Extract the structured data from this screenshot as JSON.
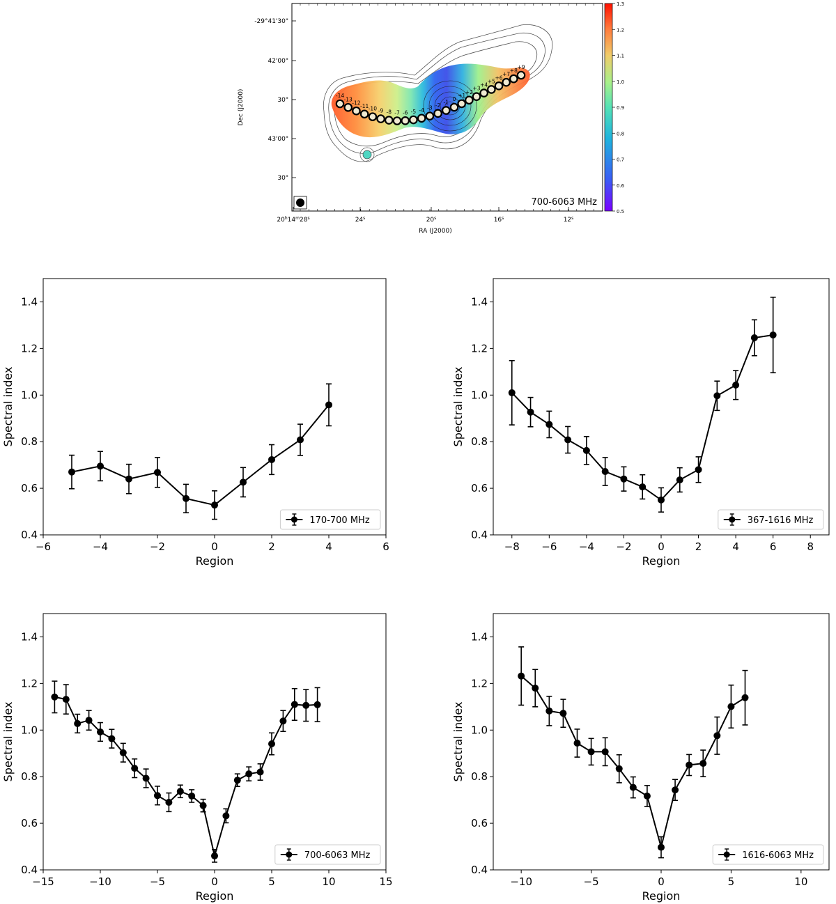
{
  "map_panel": {
    "band_label": "700-6063 MHz",
    "ylabel": "Dec (J2000)",
    "xlabel": "RA (J2000)",
    "dec_ticks": [
      "-29°41'30\"",
      "42'00\"",
      "30\"",
      "43'00\"",
      "30\""
    ],
    "ra_ticks": [
      {
        "main": "20",
        "sup1": "h",
        "mid": "14",
        "sup2": "m",
        "end": "28",
        "sup3": "s"
      },
      {
        "main": "24",
        "sup3": "s"
      },
      {
        "main": "20",
        "sup3": "s"
      },
      {
        "main": "16",
        "sup3": "s"
      },
      {
        "main": "12",
        "sup3": "s"
      }
    ],
    "colorbar": {
      "min": 0.5,
      "max": 1.3,
      "ticks": [
        "1.3",
        "1.2",
        "1.1",
        "1.0",
        "0.9",
        "0.8",
        "0.7",
        "0.6",
        "0.5"
      ]
    },
    "region_labels": [
      "-14",
      "-13",
      "-12",
      "-11",
      "-10",
      "-9",
      "-8",
      "-7",
      "-6",
      "-5",
      "-4",
      "-3",
      "-2",
      "-1",
      "0",
      "+1",
      "+2",
      "+3",
      "+4",
      "+5",
      "+6",
      "+7",
      "+8",
      "+9"
    ],
    "colors": {
      "ridge": "#f0ead2",
      "marker_edge": "#000000"
    }
  },
  "chart_data": [
    {
      "type": "line",
      "legend": "170-700 MHz",
      "legend_position": "bottom-right",
      "xlabel": "Region",
      "ylabel": "Spectral index",
      "xlim": [
        -6,
        6
      ],
      "ylim": [
        0.4,
        1.5
      ],
      "xticks": [
        -6,
        -4,
        -2,
        0,
        2,
        4,
        6
      ],
      "yticks": [
        0.4,
        0.6,
        0.8,
        1.0,
        1.2,
        1.4
      ],
      "x": [
        -5,
        -4,
        -3,
        -2,
        -1,
        0,
        1,
        2,
        3,
        4
      ],
      "y": [
        0.67,
        0.695,
        0.64,
        0.668,
        0.556,
        0.528,
        0.626,
        0.723,
        0.808,
        0.958
      ],
      "err": [
        0.072,
        0.063,
        0.063,
        0.064,
        0.061,
        0.061,
        0.063,
        0.064,
        0.067,
        0.09
      ]
    },
    {
      "type": "line",
      "legend": "367-1616 MHz",
      "legend_position": "bottom-right",
      "xlabel": "Region",
      "ylabel": "Spectral index",
      "xlim": [
        -9,
        9
      ],
      "ylim": [
        0.4,
        1.5
      ],
      "xticks": [
        -8,
        -6,
        -4,
        -2,
        0,
        2,
        4,
        6,
        8
      ],
      "yticks": [
        0.4,
        0.6,
        0.8,
        1.0,
        1.2,
        1.4
      ],
      "x": [
        -8,
        -7,
        -6,
        -5,
        -4,
        -3,
        -2,
        -1,
        0,
        1,
        2,
        3,
        4,
        5,
        6
      ],
      "y": [
        1.01,
        0.927,
        0.874,
        0.808,
        0.762,
        0.672,
        0.64,
        0.606,
        0.55,
        0.636,
        0.68,
        0.997,
        1.043,
        1.246,
        1.258
      ],
      "err": [
        0.138,
        0.063,
        0.057,
        0.057,
        0.06,
        0.06,
        0.052,
        0.052,
        0.052,
        0.052,
        0.055,
        0.063,
        0.062,
        0.077,
        0.162
      ]
    },
    {
      "type": "line",
      "legend": "700-6063 MHz",
      "legend_position": "bottom-right",
      "xlabel": "Region",
      "ylabel": "Spectral index",
      "xlim": [
        -15,
        15
      ],
      "ylim": [
        0.4,
        1.5
      ],
      "xticks": [
        -15,
        -10,
        -5,
        0,
        5,
        10,
        15
      ],
      "yticks": [
        0.4,
        0.6,
        0.8,
        1.0,
        1.2,
        1.4
      ],
      "x": [
        -14,
        -13,
        -12,
        -11,
        -10,
        -9,
        -8,
        -7,
        -6,
        -5,
        -4,
        -3,
        -2,
        -1,
        0,
        1,
        2,
        3,
        4,
        5,
        6,
        7,
        8,
        9
      ],
      "y": [
        1.142,
        1.132,
        1.028,
        1.042,
        0.992,
        0.963,
        0.903,
        0.836,
        0.793,
        0.719,
        0.69,
        0.737,
        0.717,
        0.676,
        0.46,
        0.632,
        0.785,
        0.812,
        0.82,
        0.941,
        1.039,
        1.11,
        1.106,
        1.109
      ],
      "err": [
        0.068,
        0.063,
        0.04,
        0.042,
        0.04,
        0.04,
        0.04,
        0.04,
        0.04,
        0.04,
        0.04,
        0.027,
        0.027,
        0.027,
        0.027,
        0.03,
        0.027,
        0.03,
        0.035,
        0.047,
        0.045,
        0.068,
        0.068,
        0.073
      ]
    },
    {
      "type": "line",
      "legend": "1616-6063 MHz",
      "legend_position": "bottom-right",
      "xlabel": "Region",
      "ylabel": "Spectral index",
      "xlim": [
        -12,
        12
      ],
      "ylim": [
        0.4,
        1.5
      ],
      "xticks": [
        -10,
        -5,
        0,
        5,
        10
      ],
      "yticks": [
        0.4,
        0.6,
        0.8,
        1.0,
        1.2,
        1.4
      ],
      "x": [
        -10,
        -9,
        -8,
        -7,
        -6,
        -5,
        -4,
        -3,
        -2,
        -1,
        0,
        1,
        2,
        3,
        4,
        5,
        6
      ],
      "y": [
        1.232,
        1.18,
        1.082,
        1.072,
        0.944,
        0.907,
        0.907,
        0.834,
        0.754,
        0.717,
        0.497,
        0.743,
        0.85,
        0.857,
        0.976,
        1.101,
        1.139
      ],
      "err": [
        0.125,
        0.08,
        0.063,
        0.06,
        0.06,
        0.057,
        0.06,
        0.06,
        0.045,
        0.045,
        0.045,
        0.045,
        0.045,
        0.057,
        0.08,
        0.092,
        0.117
      ]
    }
  ]
}
